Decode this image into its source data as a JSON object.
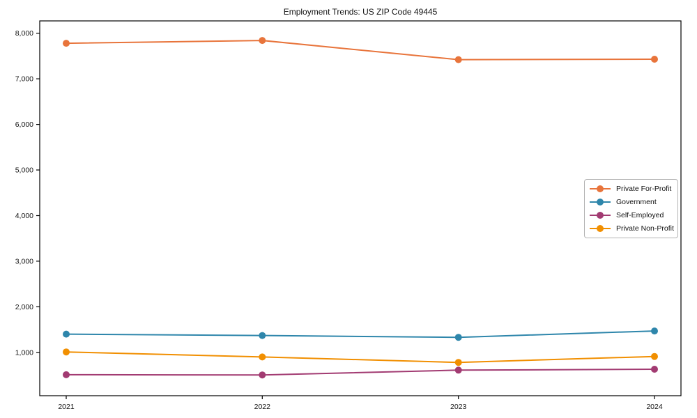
{
  "title": "Employment Trends: US ZIP Code 49445",
  "chart_data": {
    "type": "line",
    "title": "Employment Trends: US ZIP Code 49445",
    "xlabel": "",
    "ylabel": "",
    "grid": false,
    "legend_position": "center right",
    "x": [
      2021,
      2022,
      2023,
      2024
    ],
    "categories": [
      "2021",
      "2022",
      "2023",
      "2024"
    ],
    "series": [
      {
        "name": "Private For-Profit",
        "color": "#E8743B",
        "values": [
          7780,
          7840,
          7420,
          7430
        ]
      },
      {
        "name": "Government",
        "color": "#2E86AB",
        "values": [
          1400,
          1370,
          1330,
          1470
        ]
      },
      {
        "name": "Self-Employed",
        "color": "#A23B72",
        "values": [
          510,
          505,
          610,
          630
        ]
      },
      {
        "name": "Private Non-Profit",
        "color": "#F18F01",
        "values": [
          1010,
          900,
          780,
          910
        ]
      }
    ],
    "yticks": {
      "values": [
        1000,
        2000,
        3000,
        4000,
        5000,
        6000,
        7000,
        8000
      ],
      "labels": [
        "1,000",
        "2,000",
        "3,000",
        "4,000",
        "5,000",
        "6,000",
        "7,000",
        "8,000"
      ]
    },
    "xlim": [
      2020.865,
      2024.135
    ],
    "ylim": [
      50,
      8270
    ],
    "axis_color": "#000000"
  }
}
